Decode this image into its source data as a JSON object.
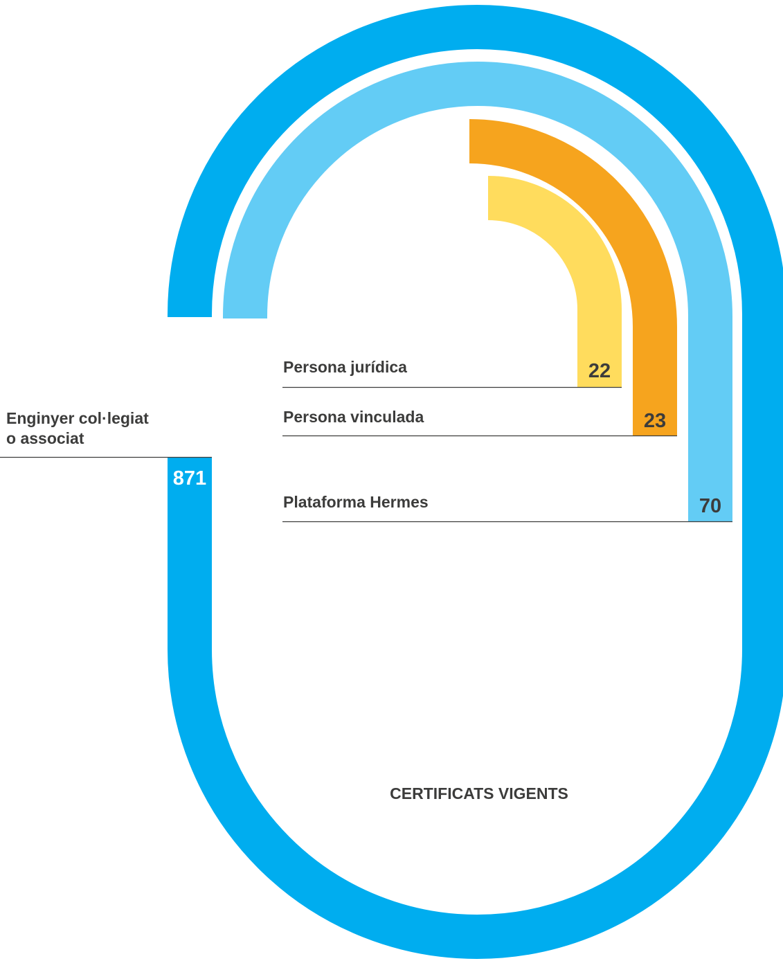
{
  "chart_data": {
    "type": "radial-bar",
    "title": "CERTIFICATS VIGENTS",
    "categories": [
      "Enginyer col·legiat o associat",
      "Plataforma Hermes",
      "Persona vinculada",
      "Persona jurídica"
    ],
    "series": [
      {
        "values": [
          871,
          70,
          23,
          22
        ]
      }
    ],
    "items": [
      {
        "label_lines": [
          "Enginyer col·legiat",
          "o associat"
        ],
        "value": "871",
        "color": "#00adef"
      },
      {
        "label_lines": [
          "Plataforma Hermes"
        ],
        "value": "70",
        "color": "#63ccf5"
      },
      {
        "label_lines": [
          "Persona vinculada"
        ],
        "value": "23",
        "color": "#f6a41e"
      },
      {
        "label_lines": [
          "Persona jurídica"
        ],
        "value": "22",
        "color": "#ffdc5d"
      }
    ]
  }
}
